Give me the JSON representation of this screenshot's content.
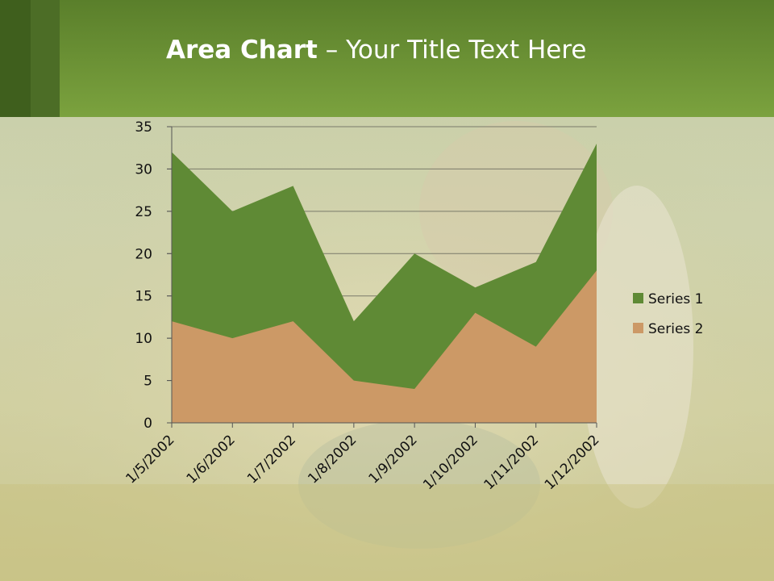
{
  "slide": {
    "title_bold": "Area Chart",
    "title_rest": " – Your Title Text Here"
  },
  "colors": {
    "header": "#6f9636",
    "series1": "#5f8a35",
    "series2": "#cc9966"
  },
  "chart_data": {
    "type": "area",
    "title": "Area Chart – Your Title Text Here",
    "categories": [
      "1/5/2002",
      "1/6/2002",
      "1/7/2002",
      "1/8/2002",
      "1/9/2002",
      "1/10/2002",
      "1/11/2002",
      "1/12/2002"
    ],
    "series": [
      {
        "name": "Series 1",
        "values": [
          32,
          25,
          28,
          12,
          20,
          16,
          19,
          33
        ]
      },
      {
        "name": "Series 2",
        "values": [
          12,
          10,
          12,
          5,
          4,
          13,
          9,
          18
        ]
      }
    ],
    "ylim": [
      0,
      35
    ],
    "yticks": [
      0,
      5,
      10,
      15,
      20,
      25,
      30,
      35
    ],
    "grid": true,
    "legend_position": "right"
  }
}
